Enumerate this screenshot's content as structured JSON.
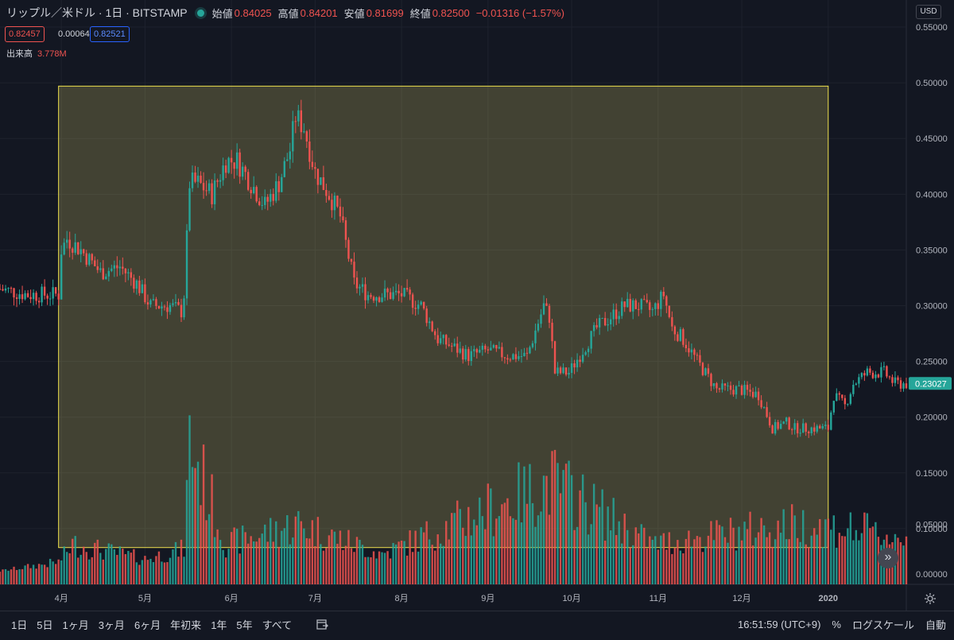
{
  "legend": {
    "symbol": "リップル／米ドル · 1日 · BITSTAMP",
    "open_label": "始値",
    "open": "0.84025",
    "high_label": "高値",
    "high": "0.84201",
    "low_label": "安値",
    "low": "0.81699",
    "close_label": "終値",
    "close": "0.82500",
    "change": "−0.01316 (−1.57%)"
  },
  "quote": {
    "bid": "0.82457",
    "spread": "0.00064",
    "ask": "0.82521"
  },
  "volume": {
    "label": "出来高",
    "value": "3.778M"
  },
  "currency": "USD",
  "last_price": "0.23027",
  "time_axis": {
    "labels": [
      "4月",
      "5月",
      "6月",
      "7月",
      "8月",
      "9月",
      "10月",
      "11月",
      "12月",
      "2020"
    ]
  },
  "price_axis": {
    "labels": [
      "0.55000",
      "0.50000",
      "0.45000",
      "0.40000",
      "0.35000",
      "0.30000",
      "0.25000",
      "0.20000",
      "0.15000",
      "0.10000"
    ]
  },
  "volume_axis": {
    "labels": [
      "0.05000",
      "0.00000"
    ]
  },
  "ranges": [
    "1日",
    "5日",
    "1ヶ月",
    "3ヶ月",
    "6ヶ月",
    "年初来",
    "1年",
    "5年",
    "すべて"
  ],
  "bottom_right": {
    "time": "16:51:59 (UTC+9)",
    "percent": "%",
    "log": "ログスケール",
    "auto": "自動"
  },
  "icons": {
    "goto": "goto-date-icon",
    "scroll": "scroll-to-realtime-icon",
    "settings": "gear-icon"
  },
  "colors": {
    "up": "#26a69a",
    "down": "#ef5350",
    "highlight_fill": "#fff176",
    "highlight_stroke": "#f0e24e",
    "background": "#131722"
  },
  "chart_data": {
    "type": "candlestick",
    "x_start": "2019-03-10",
    "x_end": "2020-01-29",
    "ylim": [
      0.05,
      0.56
    ],
    "scale": "linear",
    "grid": true,
    "highlight_rectangle": {
      "x_start": "2019-03-31",
      "x_end": "2020-01-01",
      "y_low": 0.083,
      "y_high": 0.497
    },
    "close_series": {
      "dates": [
        "2019-03-10",
        "2019-03-20",
        "2019-03-31",
        "2019-04-01",
        "2019-04-03",
        "2019-04-08",
        "2019-04-15",
        "2019-04-22",
        "2019-04-28",
        "2019-05-03",
        "2019-05-10",
        "2019-05-14",
        "2019-05-15",
        "2019-05-17",
        "2019-05-20",
        "2019-05-25",
        "2019-05-30",
        "2019-06-03",
        "2019-06-08",
        "2019-06-13",
        "2019-06-18",
        "2019-06-22",
        "2019-06-24",
        "2019-06-27",
        "2019-07-01",
        "2019-07-06",
        "2019-07-10",
        "2019-07-15",
        "2019-07-20",
        "2019-07-26",
        "2019-08-01",
        "2019-08-08",
        "2019-08-14",
        "2019-08-18",
        "2019-08-25",
        "2019-09-01",
        "2019-09-08",
        "2019-09-15",
        "2019-09-21",
        "2019-09-23",
        "2019-09-25",
        "2019-09-30",
        "2019-10-05",
        "2019-10-10",
        "2019-10-15",
        "2019-10-20",
        "2019-10-25",
        "2019-10-30",
        "2019-11-03",
        "2019-11-06",
        "2019-11-10",
        "2019-11-15",
        "2019-11-22",
        "2019-11-25",
        "2019-11-30",
        "2019-12-07",
        "2019-12-12",
        "2019-12-17",
        "2019-12-20",
        "2019-12-25",
        "2020-01-01",
        "2020-01-03",
        "2020-01-07",
        "2020-01-10",
        "2020-01-15",
        "2020-01-21",
        "2020-01-25",
        "2020-01-29"
      ],
      "values": [
        0.315,
        0.31,
        0.31,
        0.35,
        0.36,
        0.35,
        0.33,
        0.335,
        0.32,
        0.3,
        0.3,
        0.295,
        0.31,
        0.41,
        0.41,
        0.4,
        0.43,
        0.43,
        0.41,
        0.39,
        0.41,
        0.44,
        0.47,
        0.46,
        0.42,
        0.4,
        0.38,
        0.32,
        0.31,
        0.31,
        0.31,
        0.3,
        0.27,
        0.265,
        0.255,
        0.26,
        0.255,
        0.255,
        0.3,
        0.29,
        0.24,
        0.24,
        0.26,
        0.28,
        0.29,
        0.3,
        0.3,
        0.295,
        0.31,
        0.28,
        0.27,
        0.25,
        0.225,
        0.225,
        0.225,
        0.22,
        0.19,
        0.195,
        0.19,
        0.19,
        0.19,
        0.22,
        0.21,
        0.23,
        0.24,
        0.24,
        0.23,
        0.23
      ]
    },
    "volume_series": {
      "dates": [
        "2019-03-10",
        "2019-03-31",
        "2019-04-05",
        "2019-05-01",
        "2019-05-15",
        "2019-05-17",
        "2019-05-30",
        "2019-06-25",
        "2019-07-25",
        "2019-09-24",
        "2019-10-30",
        "2019-12-20",
        "2020-01-10",
        "2020-01-29"
      ],
      "values": [
        0.003,
        0.012,
        0.03,
        0.015,
        0.025,
        0.134,
        0.03,
        0.05,
        0.02,
        0.092,
        0.03,
        0.05,
        0.045,
        0.035
      ]
    }
  }
}
